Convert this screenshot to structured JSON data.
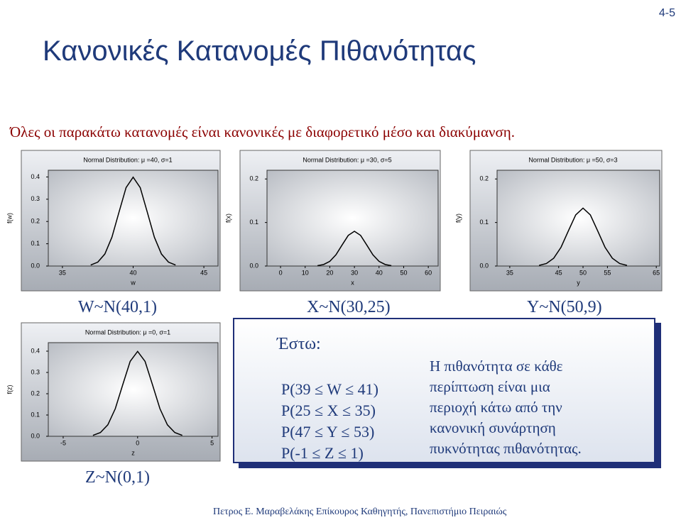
{
  "page_number": "4-5",
  "title": "Κανονικές Κατανομές Πιθανότητας",
  "subtitle": "Όλες οι παρακάτω κατανομές είναι κανονικές με διαφορετικό μέσο και διακύμανση.",
  "labels": [
    "W~N(40,1)",
    "X~N(30,25)",
    "Y~N(50,9)",
    "Z~N(0,1)"
  ],
  "box": {
    "heading": "Έστω:",
    "probabilities": [
      "P(39 ≤ W ≤ 41)",
      "P(25 ≤ X ≤ 35)",
      "P(47 ≤ Y ≤ 53)",
      "P(-1 ≤ Z ≤ 1)"
    ],
    "note": [
      "Η πιθανότητα σε κάθε",
      "περίπτωση είναι μια",
      "περιοχή κάτω από την",
      "κανονική συνάρτηση",
      "πυκνότητας πιθανότητας."
    ]
  },
  "footer": "Πετρος Ε. Μαραβελάκης Επίκουρος Καθηγητής, Πανεπιστήμιο Πειραιώς",
  "chart_data": [
    {
      "type": "line",
      "title": "Normal Distribution: μ =40, σ=1",
      "xlabel": "w",
      "ylabel": "f(w)",
      "color": "#000000",
      "x": [
        37,
        37.5,
        38,
        38.5,
        39,
        39.5,
        40,
        40.5,
        41,
        41.5,
        42,
        42.5,
        43
      ],
      "values": [
        0.0044,
        0.0175,
        0.054,
        0.1295,
        0.242,
        0.3521,
        0.3989,
        0.3521,
        0.242,
        0.1295,
        0.054,
        0.0175,
        0.0044
      ],
      "xlim": [
        34,
        46
      ],
      "ylim": [
        0,
        0.43
      ],
      "xticks": [
        35,
        40,
        45
      ],
      "yticks": [
        {
          "value": 0,
          "label": "0.0"
        },
        0.1,
        0.2,
        0.3,
        0.4
      ]
    },
    {
      "type": "line",
      "title": "Normal Distribution: μ =30, σ=5",
      "xlabel": "x",
      "ylabel": "f(x)",
      "color": "#000000",
      "x": [
        15,
        17.5,
        20,
        22.5,
        25,
        27.5,
        30,
        32.5,
        35,
        37.5,
        40,
        42.5,
        45
      ],
      "values": [
        0.0009,
        0.0035,
        0.0108,
        0.0259,
        0.0484,
        0.0704,
        0.0798,
        0.0704,
        0.0484,
        0.0259,
        0.0108,
        0.0035,
        0.0009
      ],
      "xlim": [
        -5.5,
        64
      ],
      "ylim": [
        0,
        0.22
      ],
      "xticks": [
        0,
        10,
        20,
        30,
        40,
        50,
        60
      ],
      "yticks": [
        {
          "value": 0,
          "label": "0.0"
        },
        0.1,
        0.2
      ]
    },
    {
      "type": "line",
      "title": "Normal Distribution: μ =50, σ=3",
      "xlabel": "y",
      "ylabel": "f(y)",
      "color": "#000000",
      "x": [
        41,
        42.5,
        44,
        45.5,
        47,
        48.5,
        50,
        51.5,
        53,
        54.5,
        56,
        57.5,
        59
      ],
      "values": [
        0.0015,
        0.0058,
        0.018,
        0.0432,
        0.0807,
        0.1174,
        0.133,
        0.1174,
        0.0807,
        0.0432,
        0.018,
        0.0058,
        0.0015
      ],
      "xlim": [
        32.4,
        65.7
      ],
      "ylim": [
        0,
        0.22
      ],
      "xticks": [
        35,
        45,
        50,
        55,
        65
      ],
      "yticks": [
        {
          "value": 0,
          "label": "0.0"
        },
        0.1,
        0.2
      ]
    },
    {
      "type": "line",
      "title": "Normal Distribution: μ =0, σ=1",
      "xlabel": "z",
      "ylabel": "f(z)",
      "color": "#000000",
      "x": [
        -3,
        -2.5,
        -2,
        -1.5,
        -1,
        -0.5,
        0,
        0.5,
        1,
        1.5,
        2,
        2.5,
        3
      ],
      "values": [
        0.0044,
        0.0175,
        0.054,
        0.1295,
        0.242,
        0.3521,
        0.3989,
        0.3521,
        0.242,
        0.1295,
        0.054,
        0.0175,
        0.0044
      ],
      "xlim": [
        -6,
        5.4
      ],
      "ylim": [
        0,
        0.44
      ],
      "xticks": [
        -5,
        0,
        5
      ],
      "yticks": [
        {
          "value": 0,
          "label": "0.0"
        },
        0.1,
        0.2,
        0.3,
        0.4
      ]
    }
  ]
}
